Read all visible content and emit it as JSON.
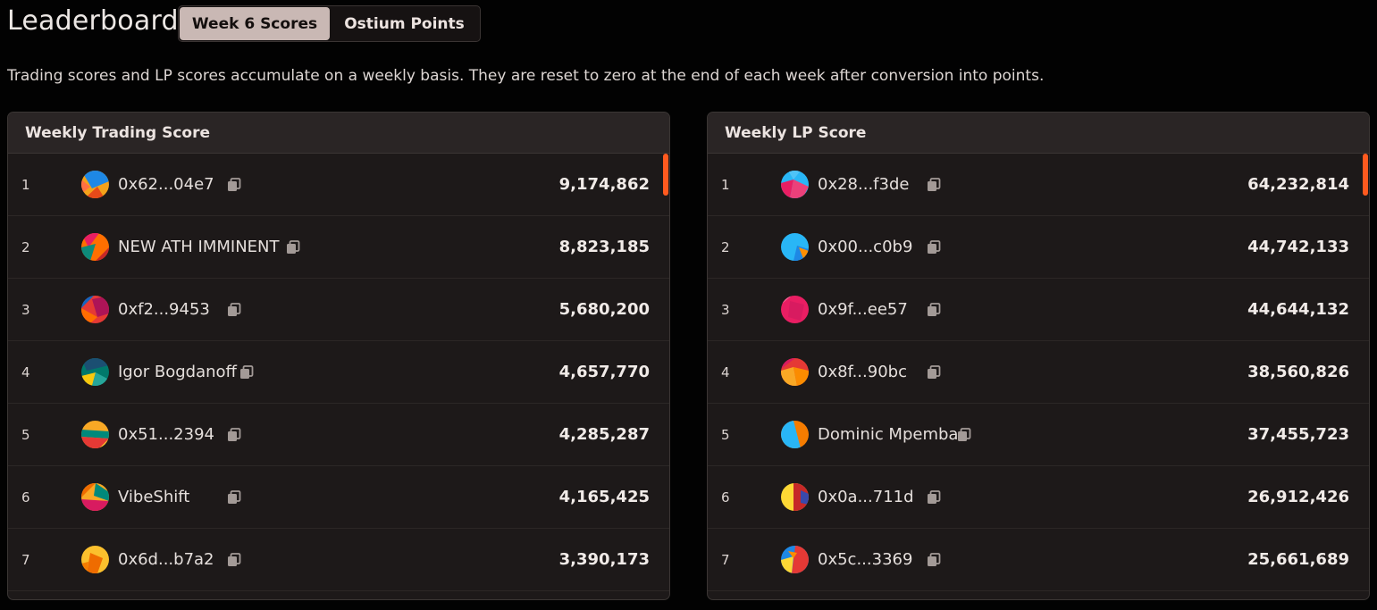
{
  "header": {
    "title": "Leaderboard",
    "tabs": [
      {
        "label": "Week 6 Scores",
        "active": true
      },
      {
        "label": "Ostium Points",
        "active": false
      }
    ],
    "description": "Trading scores and LP scores accumulate on a weekly basis. They are reset to zero at the end of each week after conversion into points."
  },
  "trading": {
    "title": "Weekly Trading Score",
    "rows": [
      {
        "rank": "1",
        "name": "0x62...04e7",
        "score": "9,174,862"
      },
      {
        "rank": "2",
        "name": "NEW ATH IMMINENT",
        "score": "8,823,185"
      },
      {
        "rank": "3",
        "name": "0xf2...9453",
        "score": "5,680,200"
      },
      {
        "rank": "4",
        "name": "Igor Bogdanoff",
        "score": "4,657,770"
      },
      {
        "rank": "5",
        "name": "0x51...2394",
        "score": "4,285,287"
      },
      {
        "rank": "6",
        "name": "VibeShift",
        "score": "4,165,425"
      },
      {
        "rank": "7",
        "name": "0x6d...b7a2",
        "score": "3,390,173"
      }
    ]
  },
  "lp": {
    "title": "Weekly LP Score",
    "rows": [
      {
        "rank": "1",
        "name": "0x28...f3de",
        "score": "64,232,814"
      },
      {
        "rank": "2",
        "name": "0x00...c0b9",
        "score": "44,742,133"
      },
      {
        "rank": "3",
        "name": "0x9f...ee57",
        "score": "44,644,132"
      },
      {
        "rank": "4",
        "name": "0x8f...90bc",
        "score": "38,560,826"
      },
      {
        "rank": "5",
        "name": "Dominic Mpemba",
        "score": "37,455,723"
      },
      {
        "rank": "6",
        "name": "0x0a...711d",
        "score": "26,912,426"
      },
      {
        "rank": "7",
        "name": "0x5c...3369",
        "score": "25,661,689"
      }
    ]
  },
  "colors": {
    "accent": "#ff5a1f",
    "tab_active_bg": "#c9b8b4",
    "panel_bg": "#1d1919",
    "panel_header_bg": "#2a2525"
  },
  "icons": {
    "copy": "copy-icon",
    "avatar": "avatar-icon"
  }
}
